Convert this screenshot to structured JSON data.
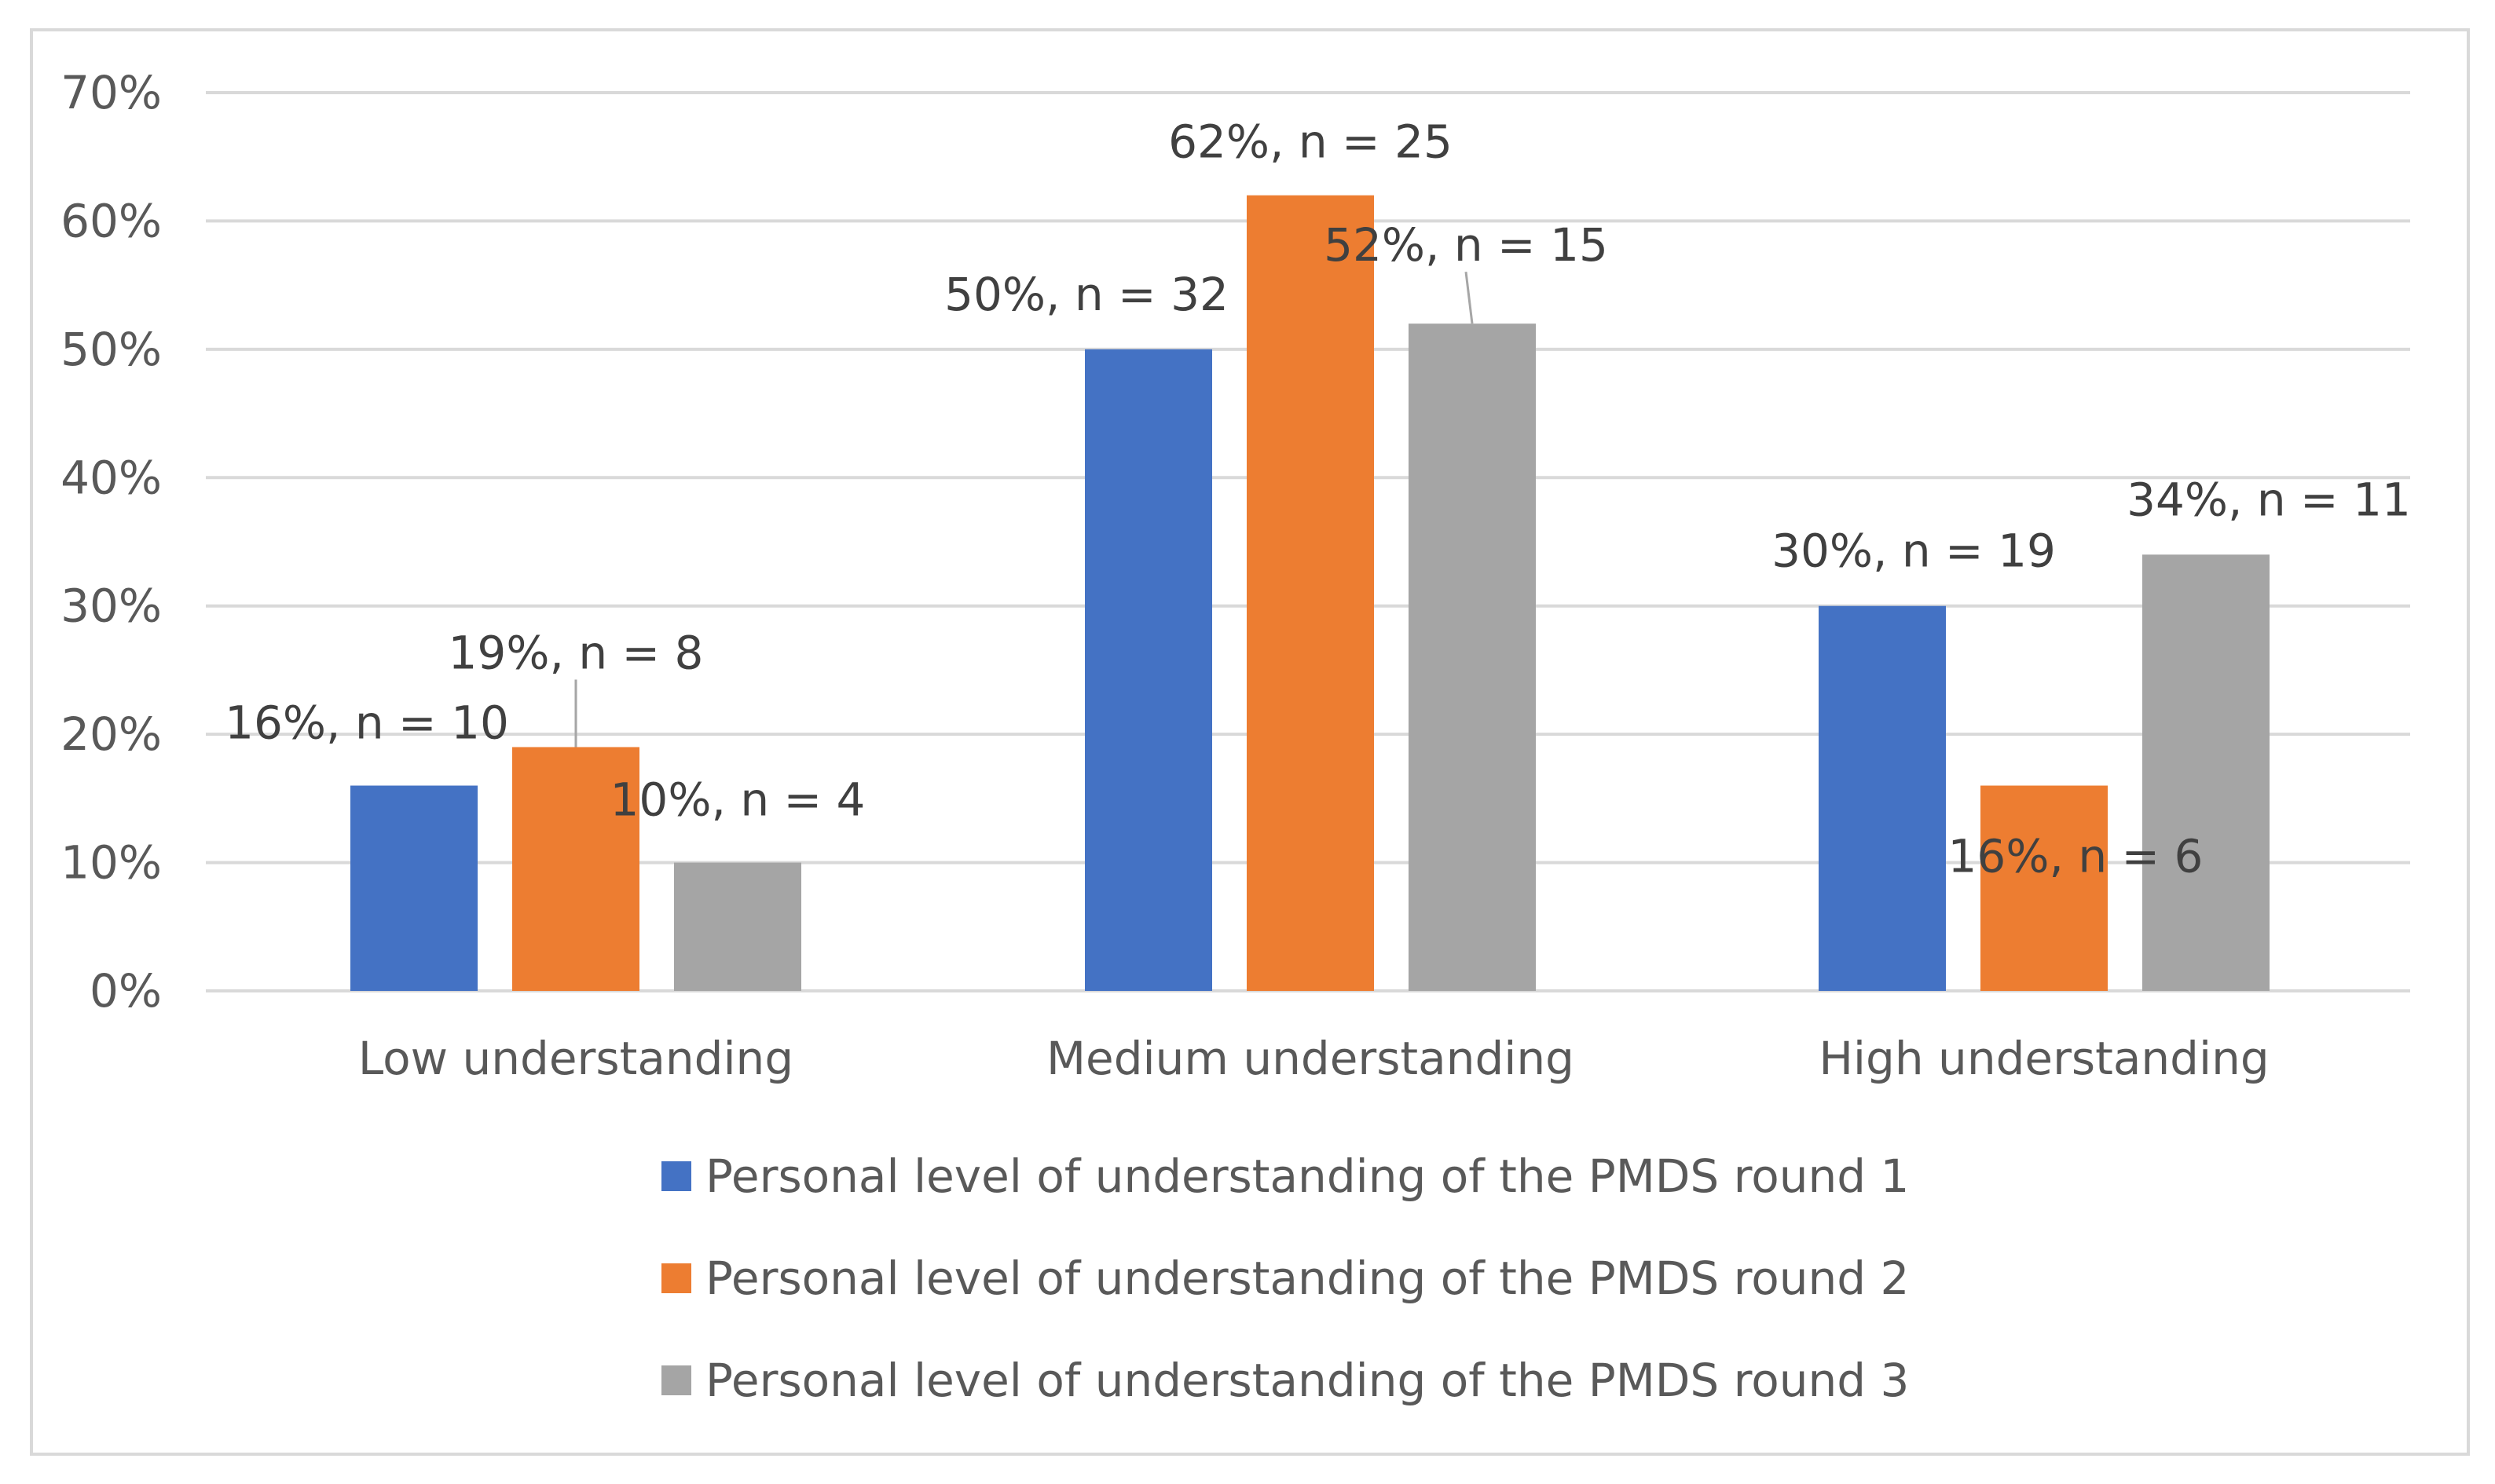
{
  "chart_data": {
    "type": "bar",
    "title": "",
    "xlabel": "",
    "ylabel": "",
    "ylim": [
      0,
      70
    ],
    "y_ticks": [
      "0%",
      "10%",
      "20%",
      "30%",
      "40%",
      "50%",
      "60%",
      "70%"
    ],
    "grid": true,
    "legend_position": "bottom",
    "categories": [
      "Low understanding",
      "Medium understanding",
      "High understanding"
    ],
    "series": [
      {
        "name": "Personal level of understanding of the PMDS round 1",
        "color": "#4472c4",
        "values": [
          16,
          50,
          30
        ],
        "labels": [
          "16%, n = 10",
          "50%, n = 32",
          "30%, n = 19"
        ]
      },
      {
        "name": "Personal level of understanding of the PMDS round 2",
        "color": "#ed7d31",
        "values": [
          19,
          62,
          16
        ],
        "labels": [
          "19%, n = 8",
          "62%, n = 25",
          "16%, n = 6"
        ]
      },
      {
        "name": "Personal level of understanding of the PMDS round 3",
        "color": "#a5a5a5",
        "values": [
          10,
          52,
          34
        ],
        "labels": [
          "10%, n = 4",
          "52%, n = 15",
          "34%, n = 11"
        ]
      }
    ]
  }
}
